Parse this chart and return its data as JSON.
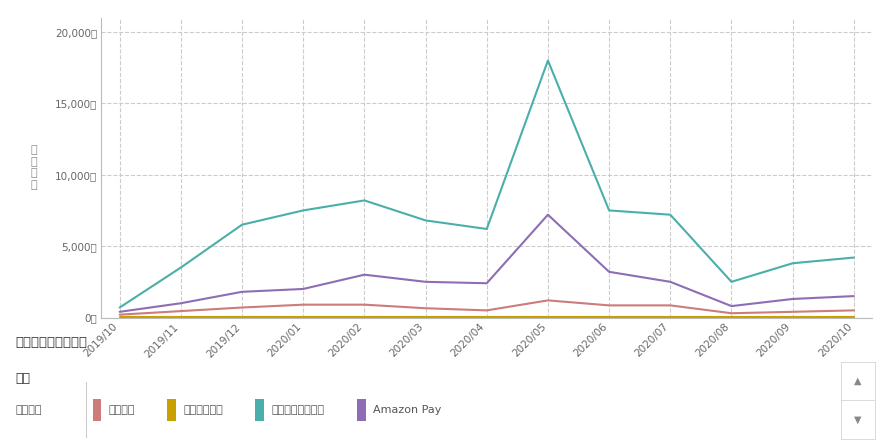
{
  "x_labels": [
    "2019/10",
    "2019/11",
    "2019/12",
    "2020/01",
    "2020/02",
    "2020/03",
    "2020/04",
    "2020/05",
    "2020/06",
    "2020/07",
    "2020/08",
    "2020/09",
    "2020/10"
  ],
  "series": [
    {
      "name": "代金引換",
      "color": "#cd7b7b",
      "values": [
        200,
        450,
        700,
        900,
        900,
        650,
        500,
        1200,
        850,
        850,
        300,
        400,
        500
      ]
    },
    {
      "name": "コンビニ支払",
      "color": "#c8a000",
      "values": [
        20,
        20,
        20,
        20,
        20,
        20,
        20,
        20,
        20,
        20,
        20,
        20,
        20
      ]
    },
    {
      "name": "クレジットカード",
      "color": "#4aafab",
      "values": [
        700,
        3500,
        6500,
        7500,
        8200,
        6800,
        6200,
        18000,
        7500,
        7200,
        2500,
        3800,
        4200
      ]
    },
    {
      "name": "Amazon Pay",
      "color": "#8e6db5",
      "values": [
        400,
        1000,
        1800,
        2000,
        3000,
        2500,
        2400,
        7200,
        3200,
        2500,
        800,
        1300,
        1500
      ]
    }
  ],
  "y_ticks": [
    0,
    5000,
    10000,
    15000,
    20000
  ],
  "y_tick_labels": [
    "0件",
    "5,000件",
    "10,000件",
    "15,000件",
    "20,000件"
  ],
  "ylim": [
    0,
    21000
  ],
  "ylabel": "注\n文\n件\n数",
  "background_color": "#ffffff",
  "grid_color": "#cccccc",
  "legend_items": [
    "代金引換",
    "コンビニ支払",
    "クレジットカード",
    "Amazon Pay"
  ],
  "legend_colors": [
    "#cd7b7b",
    "#c8a000",
    "#4aafab",
    "#8e6db5"
  ],
  "footer_title": "注文（決済方法別）",
  "footer_subtitle": "全体",
  "footer_xlabel": "注文件数"
}
